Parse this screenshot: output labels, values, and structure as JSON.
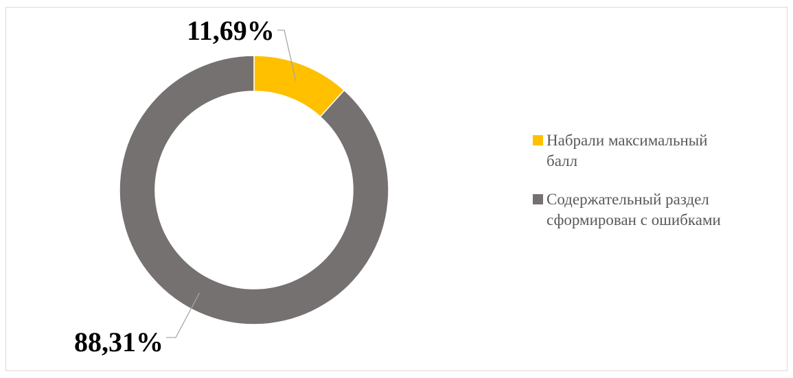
{
  "chart_data": {
    "type": "pie",
    "variant": "doughnut",
    "labels": [
      "Набрали максимальный балл",
      "Содержательный раздел сформирован с ошибками"
    ],
    "values": [
      11.69,
      88.31
    ],
    "data_labels": [
      "11,69%",
      "88,31%"
    ],
    "colors": [
      "#FFC000",
      "#767171"
    ],
    "legend": "right",
    "title": ""
  }
}
